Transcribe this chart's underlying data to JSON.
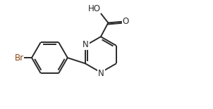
{
  "background_color": "#ffffff",
  "line_color": "#2a2a2a",
  "Br_color": "#8B4513",
  "line_width": 1.4,
  "font_size": 8.5,
  "figsize": [
    3.02,
    1.55
  ],
  "dpi": 100,
  "xlim": [
    0.0,
    9.5
  ],
  "ylim": [
    0.0,
    5.0
  ]
}
